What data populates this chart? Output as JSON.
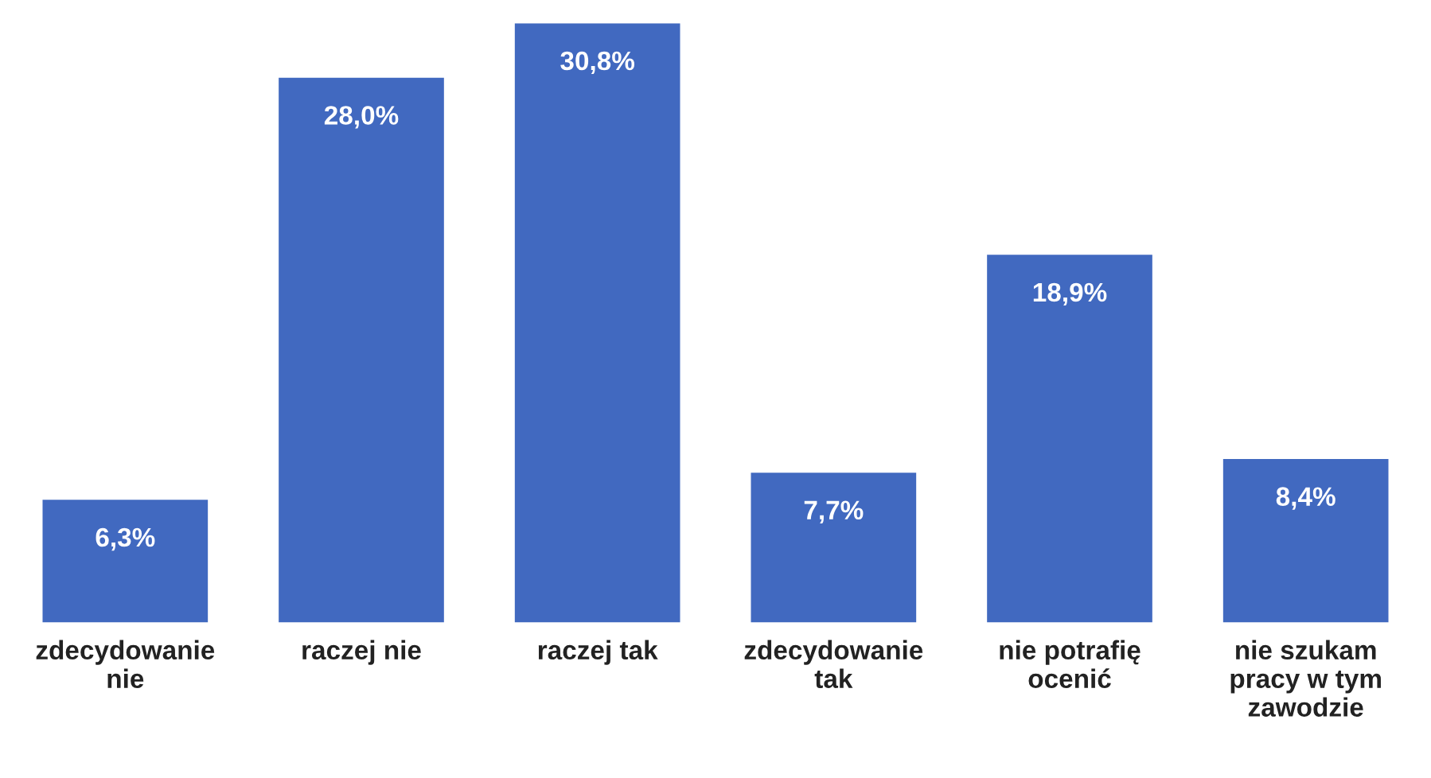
{
  "chart_data": {
    "type": "bar",
    "categories": [
      "zdecydowanie\nnie",
      "raczej nie",
      "raczej tak",
      "zdecydowanie\ntak",
      "nie potrafię\nocenić",
      "nie szukam\npracy w tym\nzawodzie"
    ],
    "values": [
      6.3,
      28.0,
      30.8,
      7.7,
      18.9,
      8.4
    ],
    "value_labels": [
      "6,3%",
      "28,0%",
      "30,8%",
      "7,7%",
      "18,9%",
      "8,4%"
    ],
    "color": "#4169c0"
  }
}
